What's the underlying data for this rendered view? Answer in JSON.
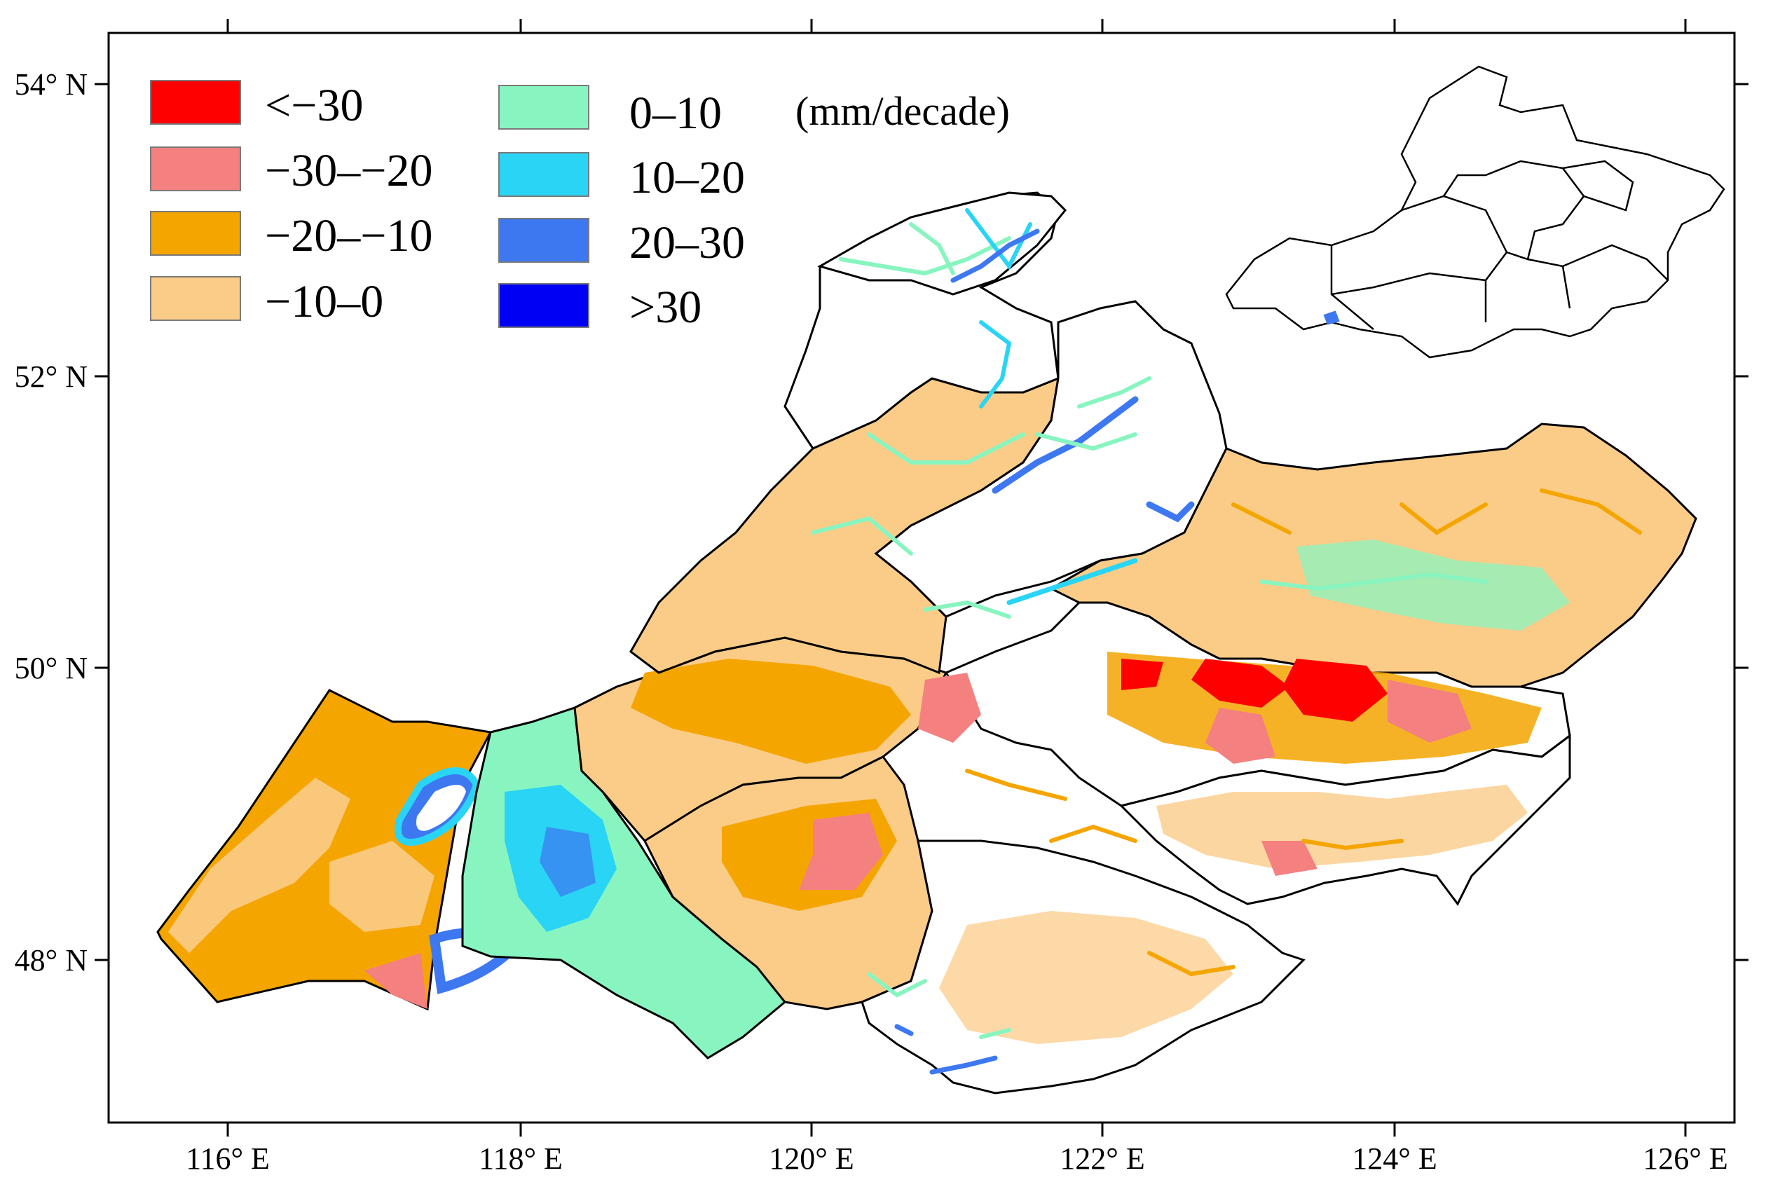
{
  "map": {
    "axes": {
      "x_ticks": [
        "116° E",
        "118° E",
        "120° E",
        "122° E",
        "124° E",
        "126° E"
      ],
      "y_ticks": [
        "54° N",
        "52° N",
        "50° N",
        "48° N"
      ]
    },
    "legend": {
      "unit": "(mm/decade)",
      "items": [
        {
          "label": "<−30",
          "color": "#ff0000"
        },
        {
          "label": "−30–−20",
          "color": "#f48080"
        },
        {
          "label": "−20–−10",
          "color": "#f5a500"
        },
        {
          "label": "−10–0",
          "color": "#fbcc88"
        },
        {
          "label": "0–10",
          "color": "#88f5c0"
        },
        {
          "label": "10–20",
          "color": "#2ad4f5"
        },
        {
          "label": "20–30",
          "color": "#3d78f0"
        },
        {
          "label": ">30",
          "color": "#0000f5"
        }
      ]
    },
    "colors": {
      "red": "#ff0000",
      "pink": "#f48080",
      "orange": "#f5a500",
      "tan": "#fbcc88",
      "green": "#88f5c0",
      "cyan": "#2ad4f5",
      "blue": "#3d78f0",
      "darkblue": "#0000f5"
    }
  }
}
